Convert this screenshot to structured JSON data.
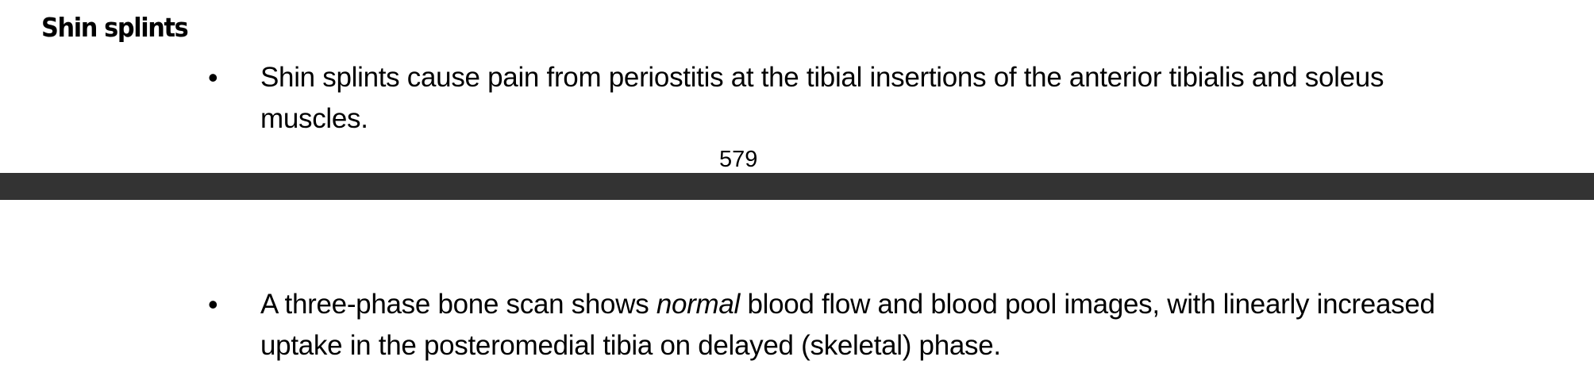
{
  "section": {
    "heading": "Shin splints"
  },
  "bullets": [
    {
      "text": "Shin splints cause pain from periostitis at the tibial insertions of the anterior tibialis and soleus muscles."
    },
    {
      "text_before": "A three-phase bone scan shows ",
      "text_emphasis": "normal",
      "text_after": " blood flow and blood pool images, with linearly increased uptake in the posteromedial tibia on delayed (skeletal) phase."
    }
  ],
  "footer": {
    "page_number": "579"
  },
  "colors": {
    "page_break_bar": "#333333",
    "text": "#000000",
    "background": "#ffffff"
  }
}
